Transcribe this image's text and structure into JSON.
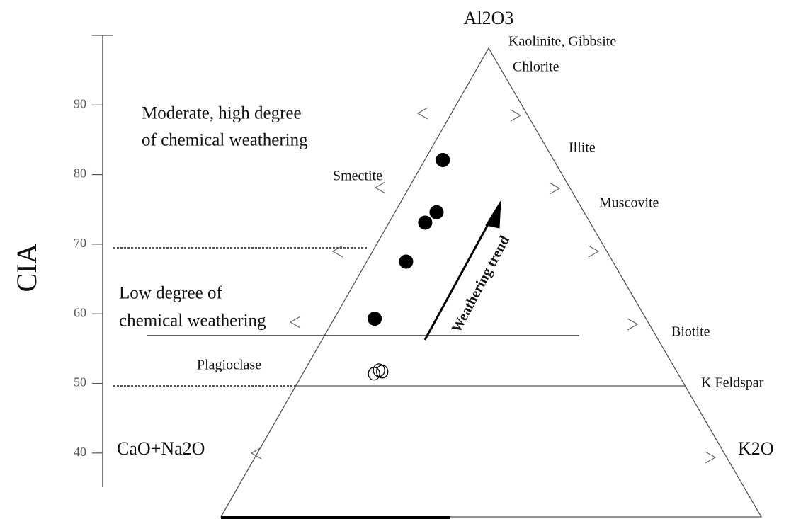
{
  "chart_data": {
    "type": "ternary",
    "y_label": "CIA",
    "ylim": [
      35.1,
      100
    ],
    "yticks": [
      40,
      50,
      60,
      70,
      80,
      90
    ],
    "apex_top": "Al2O3",
    "apex_left": "CaO+Na2O",
    "apex_right": "K2O",
    "minerals": [
      "Kaolinite, Gibbsite",
      "Chlorite",
      "Illite",
      "Muscovite",
      "Biotite",
      "K Feldspar",
      "Smectite",
      "Plagioclase"
    ],
    "zone_labels": [
      "Moderate, high degree",
      "of chemical weathering",
      "Low degree of",
      "chemical weathering"
    ],
    "arrow_label": "Weathering trend",
    "series": [
      {
        "marker": "filled",
        "color": "#000000",
        "values": [
          82.1,
          74.6,
          73.1,
          67.5,
          59.3
        ],
        "k_fraction": [
          0.14,
          0.22,
          0.18,
          0.16,
          0.13
        ]
      },
      {
        "marker": "open",
        "color": "#000000",
        "values": [
          51.4,
          51.9,
          51.7
        ],
        "k_fraction": [
          0.19,
          0.2,
          0.21
        ]
      }
    ]
  }
}
